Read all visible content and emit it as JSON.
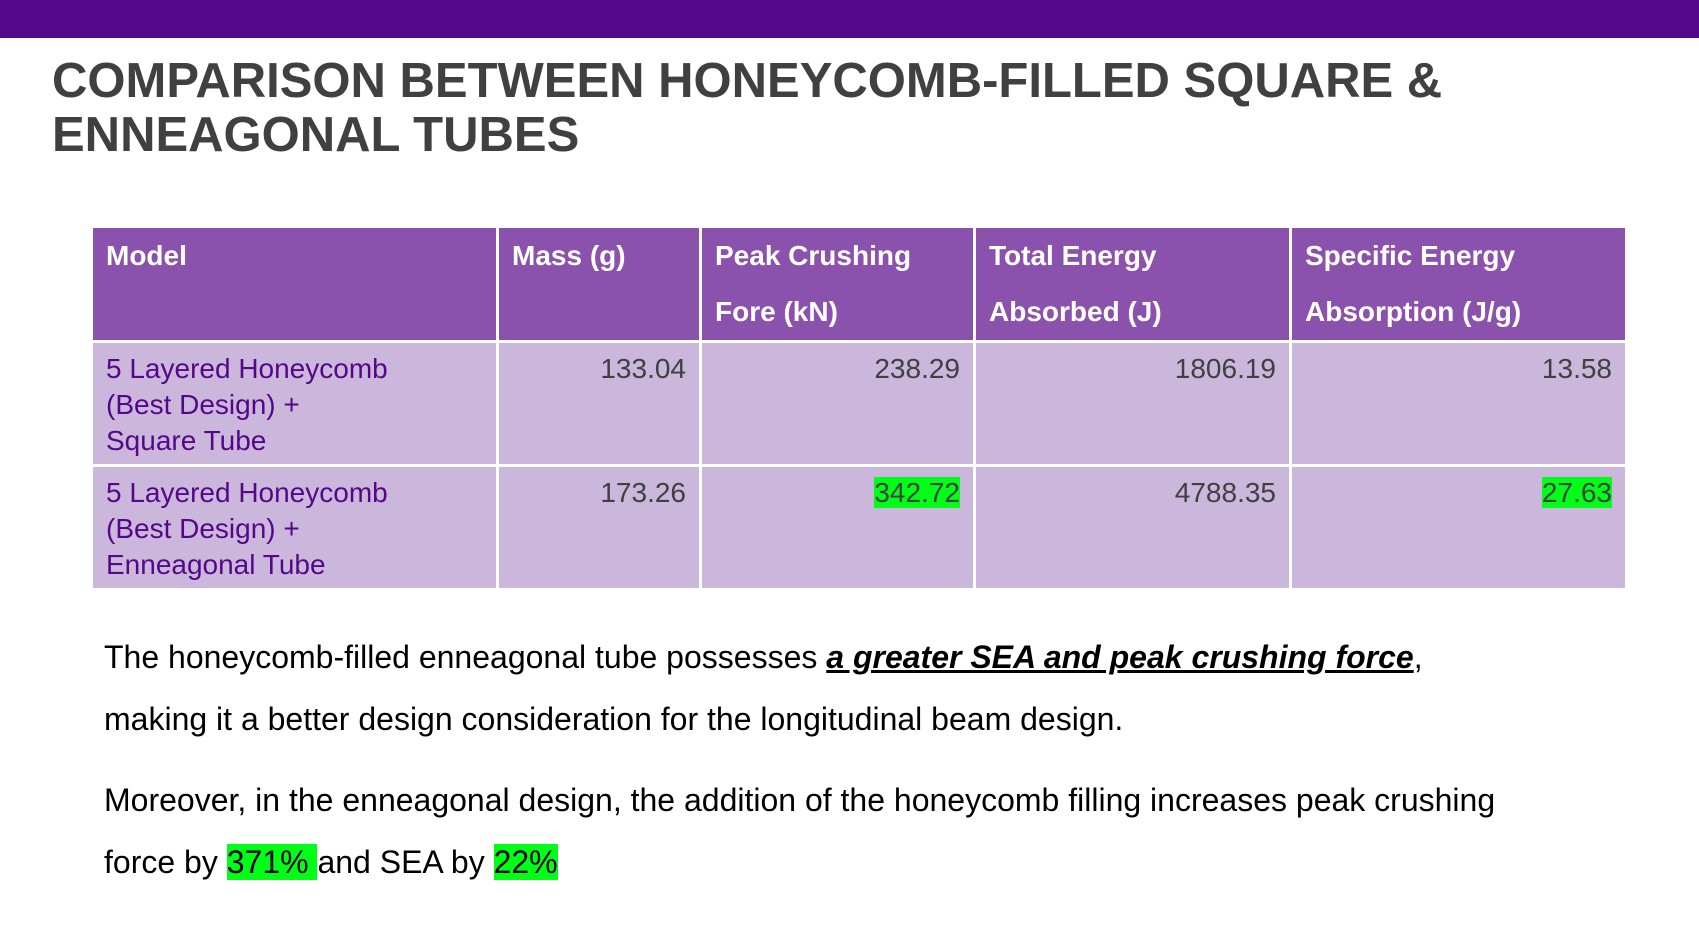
{
  "theme": {
    "top_bar_color": "#55078a",
    "header_fill": "#8b52ad",
    "row_fill": "#cbb6dc",
    "model_text_color": "#55078a",
    "highlight_color": "#00ff17"
  },
  "title": {
    "line1": "COMPARISON BETWEEN HONEYCOMB-FILLED SQUARE &",
    "line2": "ENNEAGONAL TUBES"
  },
  "table": {
    "headers": [
      {
        "line1": "Model",
        "line2": ""
      },
      {
        "line1": "Mass (g)",
        "line2": ""
      },
      {
        "line1": "Peak Crushing",
        "line2": "Fore (kN)"
      },
      {
        "line1": "Total Energy",
        "line2": "Absorbed (J)"
      },
      {
        "line1": "Specific Energy",
        "line2": "Absorption (J/g)"
      }
    ],
    "rows": [
      {
        "model": [
          "5 Layered Honeycomb",
          "(Best Design) +",
          "Square Tube"
        ],
        "mass": "133.04",
        "peak_force": "238.29",
        "total_energy": "1806.19",
        "sea": "13.58",
        "peak_highlighted": false,
        "sea_highlighted": false
      },
      {
        "model": [
          "5 Layered Honeycomb",
          "(Best Design) +",
          "Enneagonal Tube"
        ],
        "mass": "173.26",
        "peak_force": "342.72",
        "total_energy": "4788.35",
        "sea": "27.63",
        "peak_highlighted": true,
        "sea_highlighted": true
      }
    ]
  },
  "paragraph1": {
    "before": "The honeycomb-filled enneagonal tube possesses ",
    "emphasis": "a greater SEA and peak crushing force",
    "after": ",",
    "line2": "making it a better design consideration for the longitudinal beam design."
  },
  "paragraph2": {
    "line1": "Moreover, in the enneagonal design, the addition of the honeycomb filling increases peak crushing",
    "part1": "force by ",
    "highlight1": "371% ",
    "part2": "and SEA by ",
    "highlight2": "22%"
  }
}
